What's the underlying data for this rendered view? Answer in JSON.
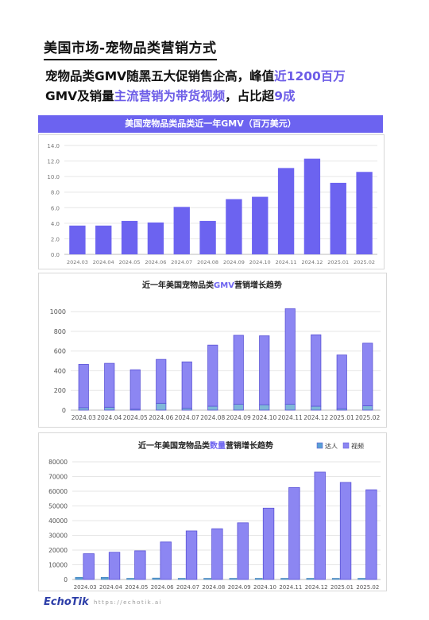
{
  "page": {
    "title": "美国市场-宠物品类营销方式",
    "headline": {
      "p1": "宠物品类GMV随黑五大促销售企高，峰值",
      "h1": "近1200百万",
      "p2": "GMV及销量",
      "h2": "主流营销为带货视频",
      "p3": "，占比超",
      "h3": "9成"
    },
    "footer": {
      "logo": "EchoTik",
      "url": "https://echotik.ai"
    }
  },
  "chart_data": [
    {
      "type": "bar",
      "title": "美国宠物品类品类近一年GMV（百万美元）",
      "categories": [
        "2024.03",
        "2024.04",
        "2024.05",
        "2024.06",
        "2024.07",
        "2024.08",
        "2024.09",
        "2024.10",
        "2024.11",
        "2024.12",
        "2025.01",
        "2025.02"
      ],
      "values": [
        3.7,
        3.7,
        4.3,
        4.1,
        6.1,
        4.3,
        7.1,
        7.4,
        11.1,
        12.3,
        9.2,
        10.6
      ],
      "ylim": [
        0,
        14
      ],
      "yticks": [
        "0.0",
        "2.0",
        "4.0",
        "6.0",
        "8.0",
        "10.0",
        "12.0",
        "14.0"
      ],
      "grid": true,
      "color": "#6c63f0"
    },
    {
      "type": "bar",
      "stacked": true,
      "title_parts": [
        "近一年美国宠物品类",
        "GMV",
        "营销增长趋势"
      ],
      "categories": [
        "2024.03",
        "2024.04",
        "2024.05",
        "2024.06",
        "2024.07",
        "2024.08",
        "2024.09",
        "2024.10",
        "2024.11",
        "2024.12",
        "2025.01",
        "2025.02"
      ],
      "series": [
        {
          "values": [
            25,
            30,
            10,
            70,
            20,
            40,
            60,
            55,
            60,
            40,
            15,
            45
          ],
          "color": "#7fb8d8"
        },
        {
          "values": [
            440,
            445,
            400,
            445,
            470,
            620,
            700,
            700,
            970,
            725,
            545,
            635
          ],
          "color": "#8c86f2"
        }
      ],
      "ylim": [
        0,
        1000
      ],
      "yticks": [
        "0",
        "200",
        "400",
        "600",
        "800",
        "1000"
      ],
      "grid": true
    },
    {
      "type": "bar",
      "stacked": false,
      "title_parts": [
        "近一年美国宠物品类",
        "数量",
        "营销增长趋势"
      ],
      "legend": [
        "达人",
        "视频"
      ],
      "legend_position": "top-right",
      "categories": [
        "2024.03",
        "2024.04",
        "2024.05",
        "2024.06",
        "2024.07",
        "2024.08",
        "2024.09",
        "2024.10",
        "2024.11",
        "2024.12",
        "2025.01",
        "2025.02"
      ],
      "series": [
        {
          "name": "达人",
          "values": [
            1500,
            1500,
            800,
            1000,
            800,
            800,
            800,
            800,
            800,
            800,
            800,
            800
          ],
          "color": "#5a9fd4"
        },
        {
          "name": "视频",
          "values": [
            17500,
            18500,
            19500,
            25500,
            33000,
            34500,
            38500,
            48500,
            62500,
            73000,
            66000,
            61000
          ],
          "color": "#8c86f2"
        }
      ],
      "ylim": [
        0,
        80000
      ],
      "yticks": [
        "0",
        "10000",
        "20000",
        "30000",
        "40000",
        "50000",
        "60000",
        "70000",
        "80000"
      ],
      "grid": true
    }
  ]
}
